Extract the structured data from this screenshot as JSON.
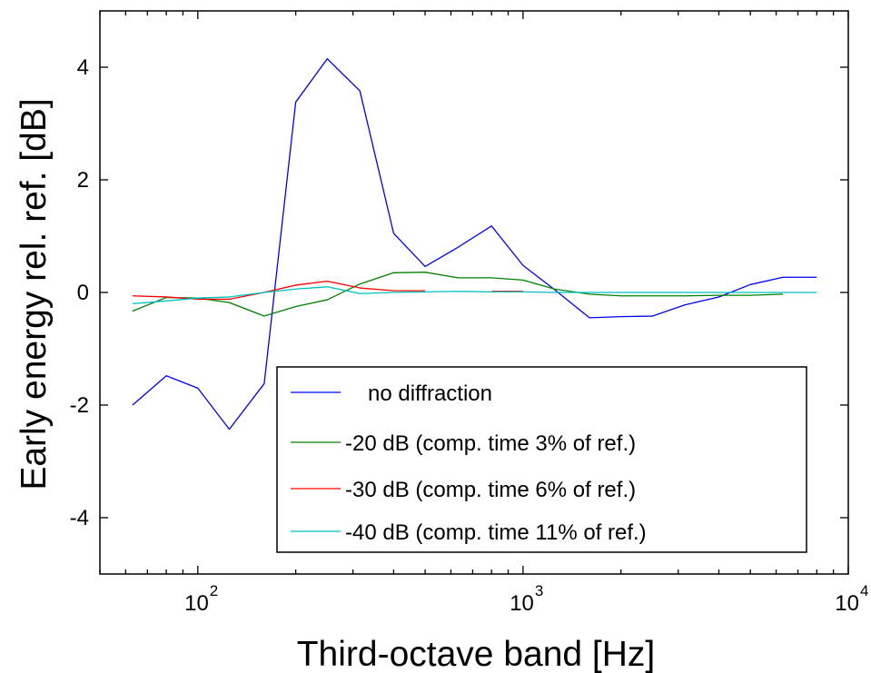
{
  "chart_data": {
    "type": "line",
    "title": "",
    "xlabel": "Third-octave band   [Hz]",
    "ylabel": "Early energy rel. ref.   [dB]",
    "xscale": "log",
    "xlim": [
      50,
      10000
    ],
    "ylim": [
      -5,
      5
    ],
    "xticks": [
      {
        "value": 100,
        "base": "10",
        "exp": "2"
      },
      {
        "value": 1000,
        "base": "10",
        "exp": "3"
      },
      {
        "value": 10000,
        "base": "10",
        "exp": "4"
      }
    ],
    "yticks": [
      -4,
      -2,
      0,
      2,
      4
    ],
    "grid": false,
    "legend_position": "bottom-right",
    "series": [
      {
        "name": "no diffraction",
        "color": "#0000ff",
        "x": [
          63,
          80,
          100,
          125,
          160,
          200,
          250,
          315,
          400,
          500,
          630,
          800,
          1000,
          1250,
          1600,
          2000,
          2500,
          3150,
          4000,
          5000,
          6300,
          8000
        ],
        "y": [
          -2.0,
          -1.48,
          -1.7,
          -2.43,
          -1.62,
          3.38,
          4.15,
          3.58,
          1.05,
          0.46,
          0.8,
          1.18,
          0.48,
          0.05,
          -0.45,
          -0.43,
          -0.42,
          -0.22,
          -0.08,
          0.14,
          0.27,
          0.27
        ]
      },
      {
        "name": "-20 dB (comp. time 3% of ref.)",
        "color": "#008000",
        "x": [
          63,
          80,
          100,
          125,
          160,
          200,
          250,
          315,
          400,
          500,
          630,
          800,
          1000,
          1250,
          1600,
          2000,
          2500,
          3150,
          4000,
          5000,
          6300
        ],
        "y": [
          -0.33,
          -0.09,
          -0.1,
          -0.18,
          -0.42,
          -0.25,
          -0.13,
          0.15,
          0.35,
          0.36,
          0.26,
          0.26,
          0.22,
          0.06,
          -0.03,
          -0.06,
          -0.06,
          -0.06,
          -0.05,
          -0.05,
          -0.03
        ]
      },
      {
        "name": "-30 dB (comp. time 6% of ref.)",
        "color": "#ff0000",
        "x": [
          63,
          80,
          100,
          125,
          160,
          200,
          250,
          315,
          400,
          500,
          null,
          800,
          1000
        ],
        "y": [
          -0.06,
          -0.08,
          -0.12,
          -0.12,
          0.0,
          0.13,
          0.2,
          0.08,
          0.03,
          0.03,
          null,
          0.02,
          0.02
        ]
      },
      {
        "name": "-40 dB (comp. time 11% of ref.)",
        "color": "#00c0c0",
        "x": [
          63,
          80,
          100,
          125,
          160,
          200,
          250,
          315,
          400,
          500,
          630,
          800,
          1000,
          1250,
          1600,
          2000,
          2500,
          3150,
          4000,
          5000,
          6300,
          8000
        ],
        "y": [
          -0.2,
          -0.15,
          -0.1,
          -0.08,
          0.0,
          0.06,
          0.1,
          -0.02,
          0.0,
          0.01,
          0.02,
          0.01,
          0.01,
          0.0,
          0.0,
          0.0,
          0.0,
          0.0,
          0.0,
          0.0,
          0.0,
          0.0
        ]
      }
    ]
  }
}
